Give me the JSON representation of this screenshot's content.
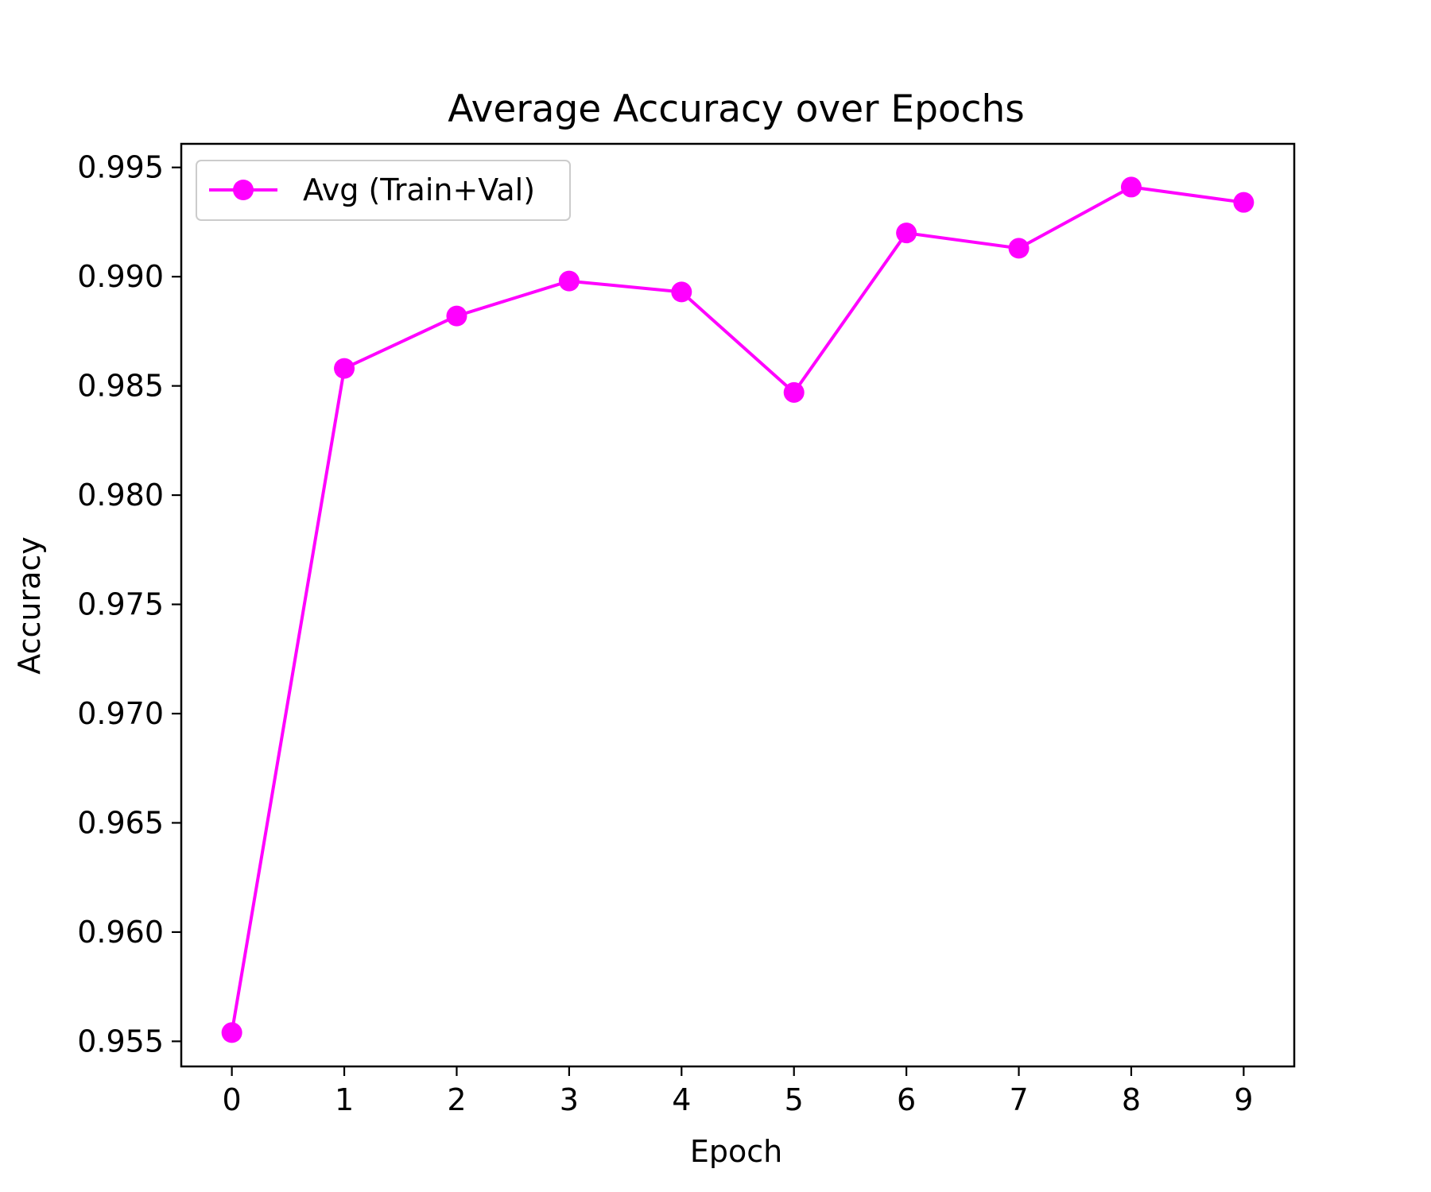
{
  "chart_data": {
    "type": "line",
    "title": "Average Accuracy over Epochs",
    "xlabel": "Epoch",
    "ylabel": "Accuracy",
    "x": [
      0,
      1,
      2,
      3,
      4,
      5,
      6,
      7,
      8,
      9
    ],
    "x_ticks": [
      "0",
      "1",
      "2",
      "3",
      "4",
      "5",
      "6",
      "7",
      "8",
      "9"
    ],
    "y_ticks": [
      0.955,
      0.96,
      0.965,
      0.97,
      0.975,
      0.98,
      0.985,
      0.99,
      0.995
    ],
    "y_tick_labels": [
      "0.955",
      "0.960",
      "0.965",
      "0.970",
      "0.975",
      "0.980",
      "0.985",
      "0.990",
      "0.995"
    ],
    "xlim": [
      -0.45,
      9.45
    ],
    "ylim": [
      0.95385,
      0.99608
    ],
    "grid": false,
    "legend_position": "upper-left",
    "series": [
      {
        "name": "Avg (Train+Val)",
        "color": "#ff00ff",
        "marker": "circle",
        "values": [
          0.9554,
          0.9858,
          0.9882,
          0.9898,
          0.9893,
          0.9847,
          0.992,
          0.9913,
          0.9941,
          0.9934
        ]
      }
    ]
  }
}
